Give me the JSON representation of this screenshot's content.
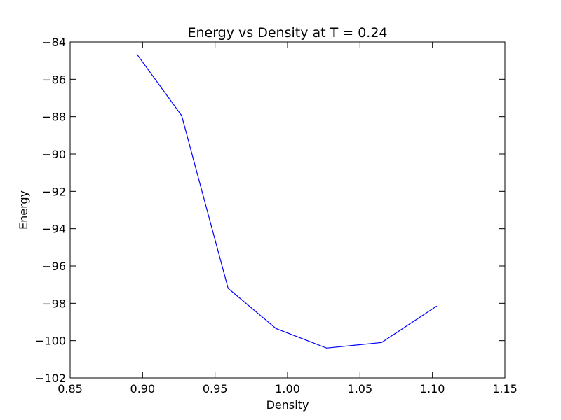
{
  "chart_data": {
    "type": "line",
    "title": "Energy vs Density at T = 0.24",
    "xlabel": "Density",
    "ylabel": "Energy",
    "xlim": [
      0.85,
      1.15
    ],
    "ylim": [
      -102,
      -84
    ],
    "xticks": [
      "0.85",
      "0.90",
      "0.95",
      "1.00",
      "1.05",
      "1.10",
      "1.15"
    ],
    "yticks": [
      "−84",
      "−86",
      "−88",
      "−90",
      "−92",
      "−94",
      "−96",
      "−98",
      "−100",
      "−102"
    ],
    "grid": false,
    "series": [
      {
        "color": "#0000ff",
        "x": [
          0.896,
          0.927,
          0.959,
          0.992,
          1.027,
          1.065,
          1.103
        ],
        "y": [
          -84.65,
          -87.95,
          -97.2,
          -99.35,
          -100.4,
          -100.1,
          -98.15
        ]
      }
    ]
  }
}
